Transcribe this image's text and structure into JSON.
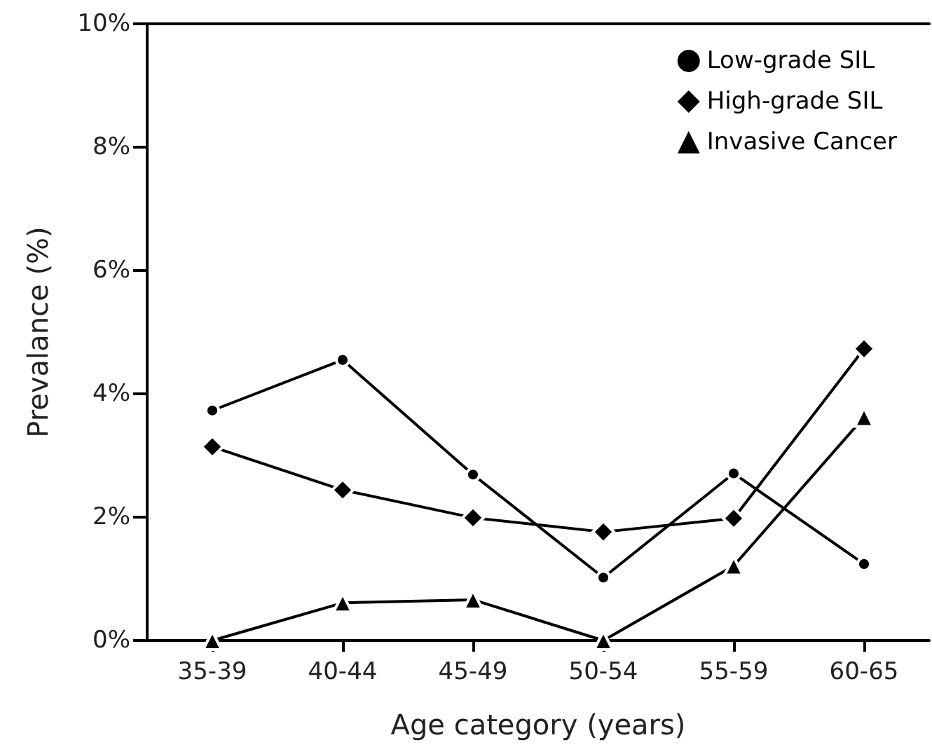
{
  "chart_data": {
    "type": "line",
    "xlabel": "Age category (years)",
    "ylabel": "Prevalance (%)",
    "categories": [
      "35-39",
      "40-44",
      "45-49",
      "50-54",
      "55-59",
      "60-65"
    ],
    "series": [
      {
        "name": "Low-grade SIL",
        "color": "#000000",
        "marker": "circle",
        "values": [
          3.73,
          4.55,
          2.69,
          1.02,
          2.71,
          1.24
        ]
      },
      {
        "name": "High-grade SIL",
        "color": "#000000",
        "marker": "diamond",
        "values": [
          3.14,
          2.44,
          1.99,
          1.76,
          1.98,
          4.73
        ]
      },
      {
        "name": "Invasive Cancer",
        "color": "#000000",
        "marker": "triangle",
        "values": [
          0,
          0.61,
          0.66,
          0,
          1.21,
          3.62
        ]
      }
    ],
    "ylim": [
      0,
      10
    ],
    "yticks": [
      {
        "value": 0,
        "label": "0%"
      },
      {
        "value": 2,
        "label": "2%"
      },
      {
        "value": 4,
        "label": "4%"
      },
      {
        "value": 6,
        "label": "6%"
      },
      {
        "value": 8,
        "label": "8%"
      },
      {
        "value": 10,
        "label": "10%"
      }
    ],
    "grid": false,
    "legend": "top right",
    "line_style": "solid"
  }
}
